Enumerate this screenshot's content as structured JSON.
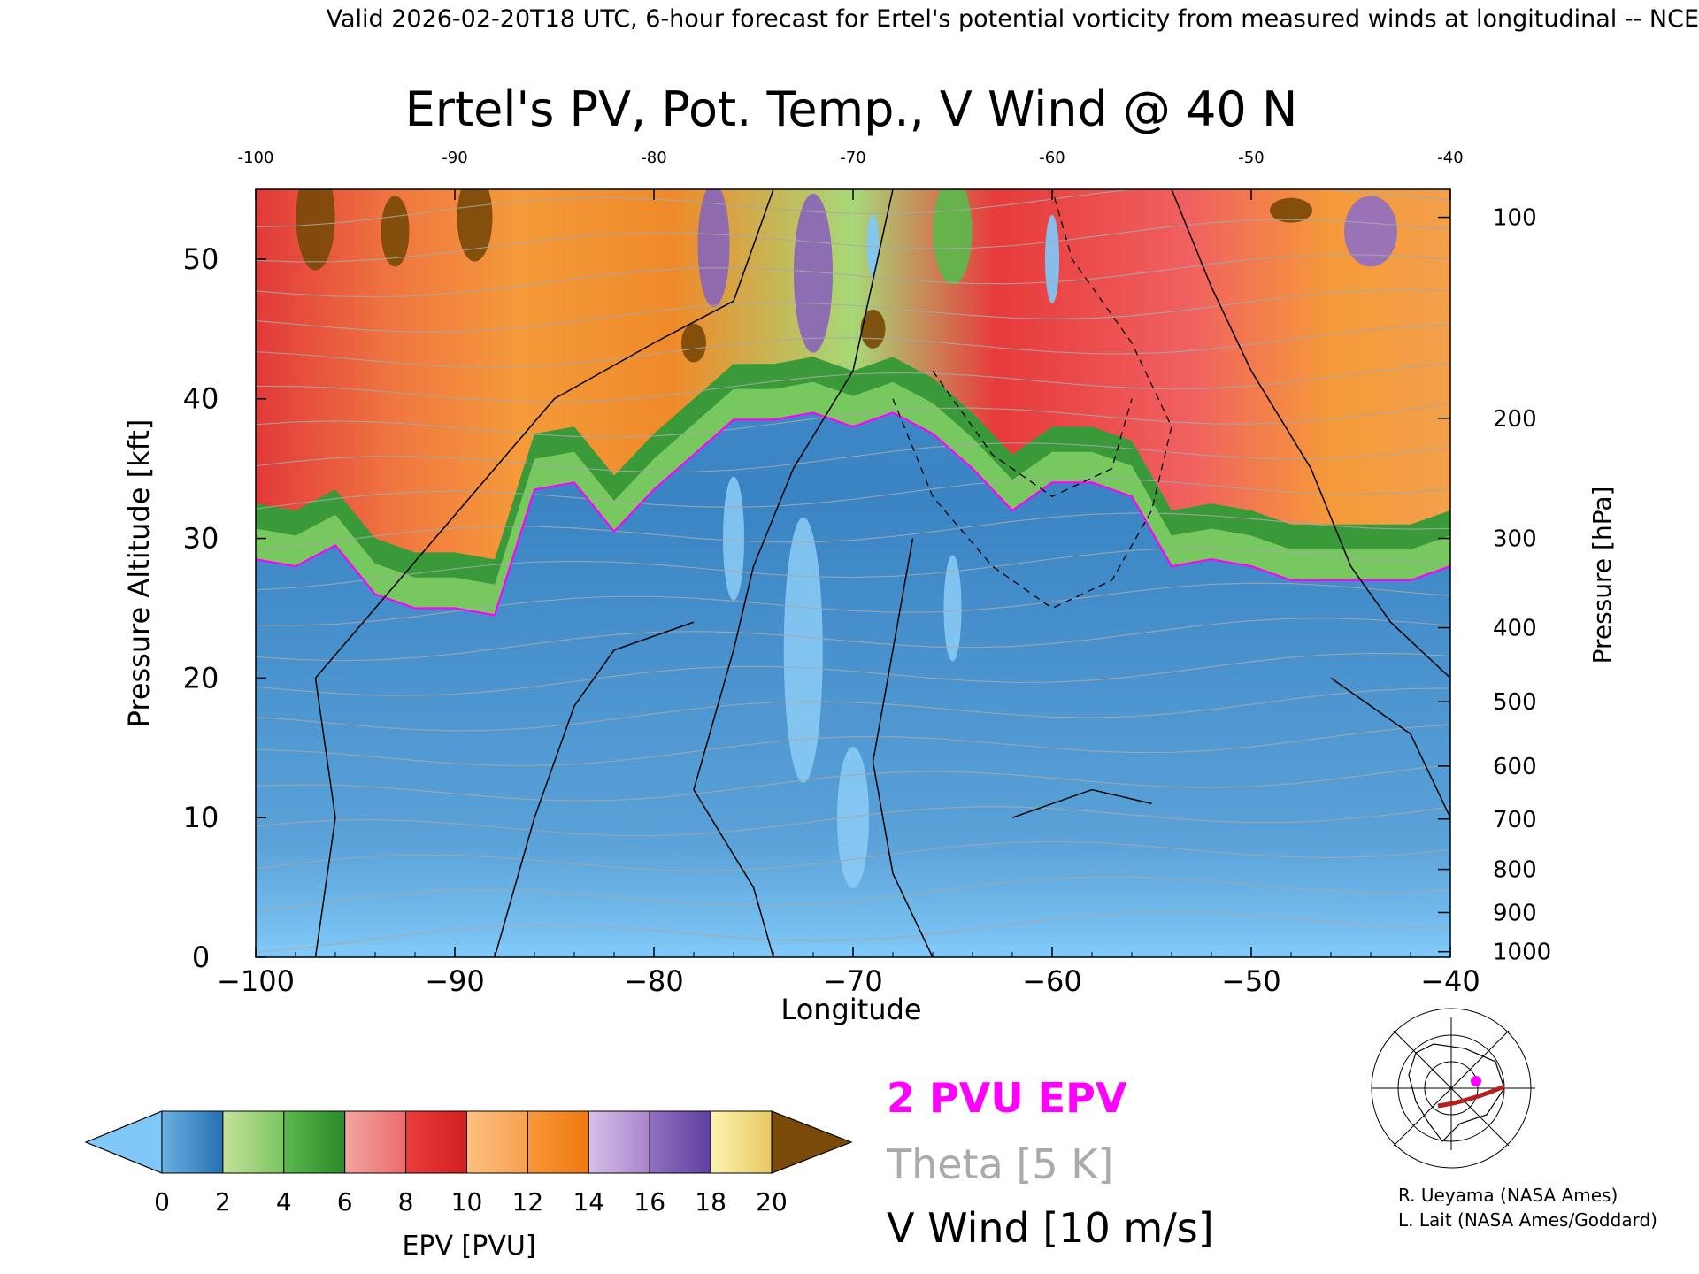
{
  "header": {
    "valid_line": "Valid 2026-02-20T18 UTC, 6-hour forecast for Ertel's potential vorticity from measured winds at longitudinal -- NCE"
  },
  "chart_data": {
    "type": "heatmap",
    "title": "Ertel's PV, Pot. Temp., V Wind @ 40 N",
    "xlabel": "Longitude",
    "ylabel_left": "Pressure Altitude [kft]",
    "ylabel_right": "Pressure [hPa]",
    "xlim": [
      -100,
      -40
    ],
    "ylim_kft": [
      0,
      55
    ],
    "x_ticks_bottom": [
      "−100",
      "−90",
      "−80",
      "−70",
      "−60",
      "−50",
      "−40"
    ],
    "x_ticks_top": [
      "-100",
      "-90",
      "-80",
      "-70",
      "-60",
      "-50",
      "-40"
    ],
    "x_tick_values": [
      -100,
      -90,
      -80,
      -70,
      -60,
      -50,
      -40
    ],
    "y_ticks_left": [
      "0",
      "10",
      "20",
      "30",
      "40",
      "50"
    ],
    "y_tick_values": [
      0,
      10,
      20,
      30,
      40,
      50
    ],
    "y_ticks_right": [
      {
        "label": "1000",
        "kft": 0.4
      },
      {
        "label": "900",
        "kft": 3.2
      },
      {
        "label": "800",
        "kft": 6.3
      },
      {
        "label": "700",
        "kft": 9.9
      },
      {
        "label": "600",
        "kft": 13.7
      },
      {
        "label": "500",
        "kft": 18.3
      },
      {
        "label": "400",
        "kft": 23.6
      },
      {
        "label": "300",
        "kft": 30.0
      },
      {
        "label": "200",
        "kft": 38.6
      },
      {
        "label": "100",
        "kft": 53.0
      }
    ],
    "epv_profile_2pvu": {
      "description": "Approximate altitude (kft) of the 2 PVU EPV surface by longitude",
      "lon": [
        -100,
        -98,
        -96,
        -94,
        -92,
        -90,
        -88,
        -86,
        -84,
        -82,
        -80,
        -78,
        -76,
        -74,
        -72,
        -70,
        -68,
        -66,
        -64,
        -62,
        -60,
        -58,
        -56,
        -54,
        -52,
        -50,
        -48,
        -46,
        -44,
        -42,
        -40
      ],
      "kft": [
        28.5,
        28.0,
        29.5,
        26.0,
        25.0,
        25.0,
        24.5,
        33.5,
        34.0,
        30.5,
        33.5,
        36.0,
        38.5,
        38.5,
        39.0,
        38.0,
        39.0,
        37.5,
        35.0,
        32.0,
        34.0,
        34.0,
        33.0,
        28.0,
        28.5,
        28.0,
        27.0,
        27.0,
        27.0,
        27.0,
        28.0
      ]
    },
    "colorbar": {
      "label": "EPV [PVU]",
      "ticks": [
        "0",
        "2",
        "4",
        "6",
        "8",
        "10",
        "12",
        "14",
        "16",
        "18",
        "20"
      ],
      "tick_values": [
        0,
        2,
        4,
        6,
        8,
        10,
        12,
        14,
        16,
        18,
        20
      ],
      "below_color": "#7fc8f7",
      "above_color": "#7a4a08",
      "bins": [
        {
          "from": 0,
          "to": 2,
          "c1": "#6ab0e0",
          "c2": "#2470b0"
        },
        {
          "from": 2,
          "to": 4,
          "c1": "#c4e29a",
          "c2": "#7cc460"
        },
        {
          "from": 4,
          "to": 6,
          "c1": "#5cb84c",
          "c2": "#2a8a2a"
        },
        {
          "from": 6,
          "to": 8,
          "c1": "#f4a4a0",
          "c2": "#ec6c6c"
        },
        {
          "from": 8,
          "to": 10,
          "c1": "#ec3c3c",
          "c2": "#d02020"
        },
        {
          "from": 10,
          "to": 12,
          "c1": "#fcc080",
          "c2": "#f8a050"
        },
        {
          "from": 12,
          "to": 14,
          "c1": "#f89838",
          "c2": "#f07810"
        },
        {
          "from": 14,
          "to": 16,
          "c1": "#d8c0e8",
          "c2": "#a884cc"
        },
        {
          "from": 16,
          "to": 18,
          "c1": "#9070c0",
          "c2": "#6040a0"
        },
        {
          "from": 18,
          "to": 20,
          "c1": "#fcf4b0",
          "c2": "#e8c860"
        }
      ]
    },
    "legend": {
      "pvu": "2 PVU EPV",
      "theta": "Theta [5 K]",
      "vwind": "V Wind [10 m/s]",
      "colors": {
        "pvu": "#ff00ff",
        "theta": "#aaaaaa",
        "vwind": "#000000"
      }
    },
    "credits": [
      "R. Ueyama (NASA Ames)",
      "L. Lait (NASA Ames/Goddard)"
    ]
  }
}
